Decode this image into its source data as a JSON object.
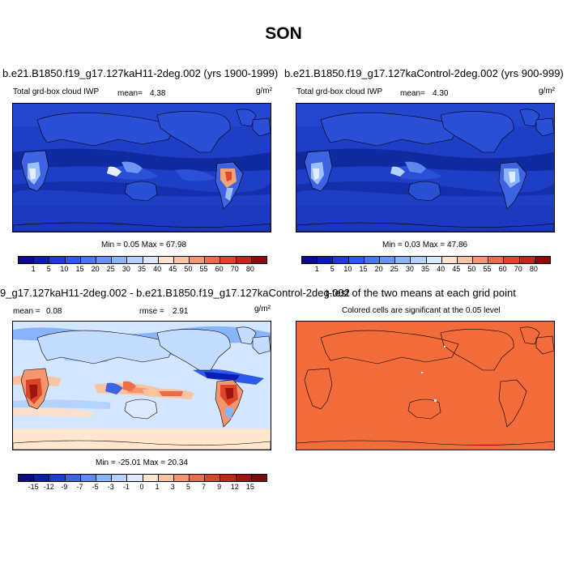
{
  "figure": {
    "title": "SON"
  },
  "panels": {
    "top_left": {
      "title": "b.e21.B1850.f19_g17.127kaH11-2deg.002 (yrs 1900-1999)",
      "variable": "Total grd-box cloud IWP",
      "mean_label": "mean=",
      "mean_value": "4.38",
      "units": "g/m²",
      "minmax": "Min =  0.05 Max =  67.98"
    },
    "top_right": {
      "title": "b.e21.B1850.f19_g17.127kaControl-2deg.002 (yrs 900-999)",
      "variable": "Total grd-box cloud IWP",
      "mean_label": "mean=",
      "mean_value": "4.30",
      "units": "g/m²",
      "minmax": "Min =  0.03 Max =  47.86"
    },
    "bottom_left": {
      "title": "9_g17.127kaH11-2deg.002 - b.e21.B1850.f19_g17.127kaControl-2deg.002",
      "mean_label": "mean =",
      "mean_value": "0.08",
      "rmse_label": "rmse =",
      "rmse_value": "2.91",
      "units": "g/m²",
      "minmax": "Min = -25.01 Max =  20.34"
    },
    "bottom_right": {
      "title": "t-test of the two means at each grid point",
      "subtitle": "Colored cells are significant at the 0.05 level"
    }
  },
  "colorbars": {
    "absolute": {
      "labels": [
        "1",
        "5",
        "10",
        "15",
        "20",
        "25",
        "30",
        "35",
        "40",
        "45",
        "50",
        "55",
        "60",
        "70",
        "80"
      ],
      "colors": [
        "#0a0a8c",
        "#0a1eb4",
        "#1e3cd2",
        "#2d5aeb",
        "#4678f0",
        "#6496f5",
        "#87b4fa",
        "#b4d2ff",
        "#dce8ff",
        "#ffe4cc",
        "#fcc3a0",
        "#f5966e",
        "#eb6e46",
        "#dc4628",
        "#be2814",
        "#8c0a0a"
      ]
    },
    "difference": {
      "labels": [
        "-15",
        "-12",
        "-9",
        "-7",
        "-5",
        "-3",
        "-1",
        "0",
        "1",
        "3",
        "5",
        "7",
        "9",
        "12",
        "15"
      ],
      "colors": [
        "#0a0a8c",
        "#0a1eb4",
        "#1e3cd2",
        "#3c64e6",
        "#5f8cf0",
        "#87b4fa",
        "#b4d2ff",
        "#dce8ff",
        "#ffe6cc",
        "#fcc3a0",
        "#f5966e",
        "#eb6e46",
        "#dc4628",
        "#be2814",
        "#a01410",
        "#780a0a"
      ]
    }
  },
  "colors": {
    "map_base_blue": "#1f3ec6",
    "map_deep_blue": "#102aa0",
    "ttest_orange": "#f26b3a",
    "diff_base": "#d4e6ff"
  }
}
